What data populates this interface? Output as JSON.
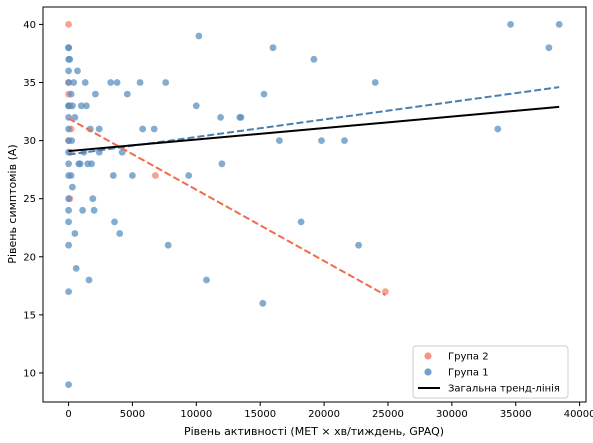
{
  "chart_data": {
    "type": "scatter",
    "title": "",
    "xlabel": "Рівень активності (MET × хв/тиждень, GPAQ)",
    "ylabel": "Рівень симптомів (А)",
    "xlim": [
      -2000,
      40500
    ],
    "ylim": [
      7.5,
      41.5
    ],
    "xticks": [
      0,
      5000,
      10000,
      15000,
      20000,
      25000,
      30000,
      35000,
      40000
    ],
    "yticks": [
      10,
      15,
      20,
      25,
      30,
      35,
      40
    ],
    "grid": false,
    "legend_position": "lower-right",
    "series": [
      {
        "name": "Група 2",
        "kind": "scatter",
        "color": "#f4826e",
        "points": [
          [
            0,
            40
          ],
          [
            0,
            35
          ],
          [
            0,
            34
          ],
          [
            100,
            33
          ],
          [
            200,
            31
          ],
          [
            0,
            30
          ],
          [
            150,
            29
          ],
          [
            100,
            25
          ],
          [
            6800,
            27
          ],
          [
            24800,
            17
          ]
        ]
      },
      {
        "name": "Група 1",
        "kind": "scatter",
        "color": "#5b8fc0",
        "points": [
          [
            0,
            38
          ],
          [
            0,
            38
          ],
          [
            0,
            37
          ],
          [
            0,
            36
          ],
          [
            0,
            35
          ],
          [
            0,
            33
          ],
          [
            0,
            33
          ],
          [
            0,
            32
          ],
          [
            0,
            31
          ],
          [
            0,
            30
          ],
          [
            0,
            29
          ],
          [
            0,
            28
          ],
          [
            0,
            27
          ],
          [
            0,
            25
          ],
          [
            0,
            24
          ],
          [
            0,
            23
          ],
          [
            0,
            21
          ],
          [
            0,
            17
          ],
          [
            0,
            9
          ],
          [
            100,
            37
          ],
          [
            200,
            34
          ],
          [
            300,
            33
          ],
          [
            250,
            30
          ],
          [
            200,
            27
          ],
          [
            300,
            26
          ],
          [
            400,
            35
          ],
          [
            500,
            32
          ],
          [
            500,
            22
          ],
          [
            600,
            19
          ],
          [
            700,
            36
          ],
          [
            800,
            28
          ],
          [
            900,
            28
          ],
          [
            1000,
            33
          ],
          [
            1100,
            24
          ],
          [
            1200,
            29
          ],
          [
            1300,
            35
          ],
          [
            1400,
            33
          ],
          [
            1500,
            28
          ],
          [
            1600,
            18
          ],
          [
            1700,
            31
          ],
          [
            1800,
            28
          ],
          [
            1900,
            25
          ],
          [
            2000,
            24
          ],
          [
            2100,
            34
          ],
          [
            2400,
            29
          ],
          [
            2400,
            31
          ],
          [
            3300,
            35
          ],
          [
            3500,
            27
          ],
          [
            3600,
            23
          ],
          [
            3800,
            35
          ],
          [
            4000,
            22
          ],
          [
            4200,
            29
          ],
          [
            4600,
            34
          ],
          [
            5000,
            27
          ],
          [
            5600,
            35
          ],
          [
            5800,
            31
          ],
          [
            6700,
            31
          ],
          [
            7600,
            35
          ],
          [
            7800,
            21
          ],
          [
            9400,
            27
          ],
          [
            10000,
            33
          ],
          [
            10200,
            39
          ],
          [
            10800,
            18
          ],
          [
            11900,
            32
          ],
          [
            12000,
            28
          ],
          [
            13400,
            32
          ],
          [
            13500,
            32
          ],
          [
            15200,
            16
          ],
          [
            15300,
            34
          ],
          [
            16000,
            38
          ],
          [
            16500,
            30
          ],
          [
            18200,
            23
          ],
          [
            19200,
            37
          ],
          [
            19800,
            30
          ],
          [
            21600,
            30
          ],
          [
            22700,
            21
          ],
          [
            24000,
            35
          ],
          [
            33600,
            31
          ],
          [
            34600,
            40
          ],
          [
            37600,
            38
          ],
          [
            38400,
            40
          ]
        ]
      }
    ],
    "trend_lines": [
      {
        "name": "Група 2 тренд",
        "style": "dashed",
        "color": "#f26b4a",
        "x": [
          0,
          24800
        ],
        "y": [
          31.9,
          16.7
        ]
      },
      {
        "name": "Група 1 тренд",
        "style": "dashed",
        "color": "#4a7fb0",
        "x": [
          0,
          38400
        ],
        "y": [
          28.8,
          34.6
        ]
      },
      {
        "name": "Загальна тренд-лінія",
        "style": "solid",
        "color": "#000000",
        "x": [
          0,
          38400
        ],
        "y": [
          29.1,
          32.9
        ]
      }
    ],
    "legend": [
      {
        "label": "Група 2",
        "kind": "marker",
        "color": "#f4826e"
      },
      {
        "label": "Група 1",
        "kind": "marker",
        "color": "#5b8fc0"
      },
      {
        "label": "Загальна тренд-лінія",
        "kind": "line",
        "color": "#000000"
      }
    ]
  }
}
